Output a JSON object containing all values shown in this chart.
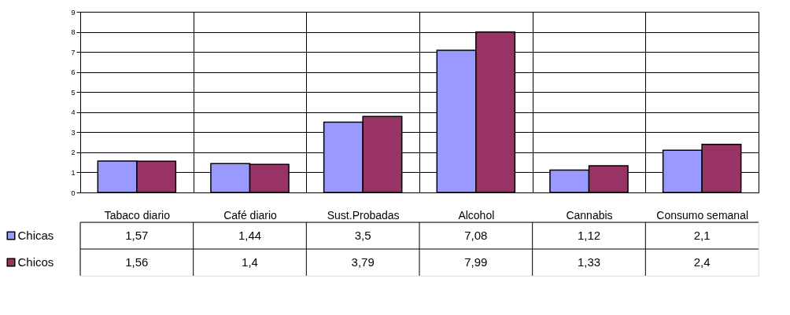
{
  "chart_data": {
    "type": "bar",
    "categories": [
      "Tabaco diario",
      "Café diario",
      "Sust.Probadas",
      "Alcohol",
      "Cannabis",
      "Consumo semanal"
    ],
    "series": [
      {
        "name": "Chicas",
        "color": "#9999ff",
        "values": [
          1.57,
          1.44,
          3.5,
          7.08,
          1.12,
          2.1
        ],
        "value_labels": [
          "1,57",
          "1,44",
          "3,5",
          "7,08",
          "1,12",
          "2,1"
        ]
      },
      {
        "name": "Chicos",
        "color": "#993366",
        "values": [
          1.56,
          1.4,
          3.79,
          7.99,
          1.33,
          2.4
        ],
        "value_labels": [
          "1,56",
          "1,4",
          "3,79",
          "7,99",
          "1,33",
          "2,4"
        ]
      }
    ],
    "ylim": [
      0,
      9
    ],
    "yticks": [
      0,
      1,
      2,
      3,
      4,
      5,
      6,
      7,
      8,
      9
    ],
    "grid": "y",
    "legend": "bottom left"
  }
}
